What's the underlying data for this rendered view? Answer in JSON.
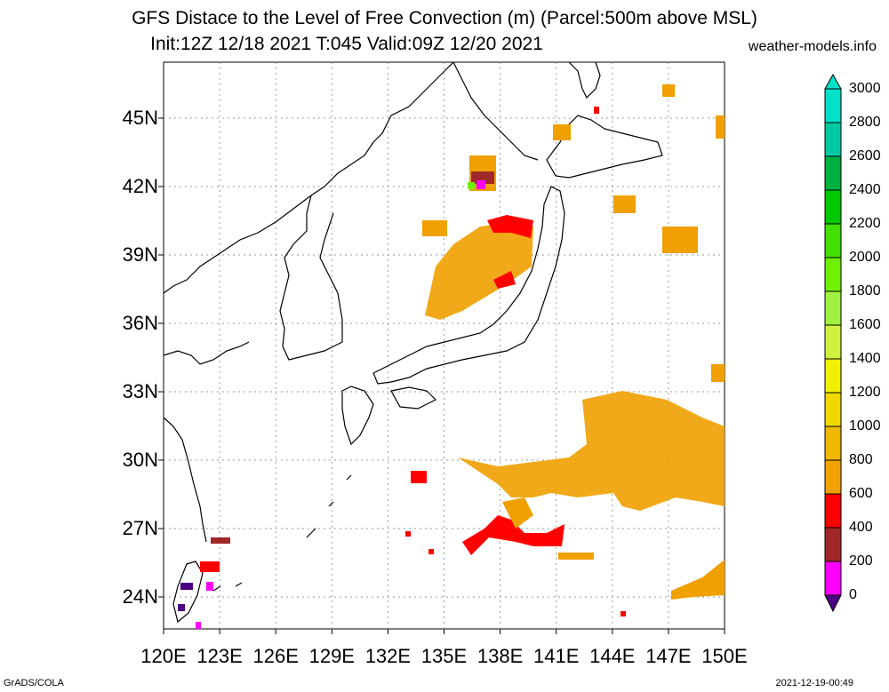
{
  "title_line1": "GFS Distace to the Level of Free Convection (m) (Parcel:500m above MSL)",
  "title_line2": "Init:12Z 12/18 2021 T:045 Valid:09Z 12/20 2021",
  "credit": "weather-models.info",
  "footer_left": "GrADS/COLA",
  "footer_right": "2021-12-19-00:49",
  "lat_labels": [
    "45N",
    "42N",
    "39N",
    "36N",
    "33N",
    "30N",
    "27N",
    "24N"
  ],
  "lon_labels": [
    "120E",
    "123E",
    "126E",
    "129E",
    "132E",
    "135E",
    "138E",
    "141E",
    "144E",
    "147E",
    "150E"
  ],
  "colorbar": {
    "labels": [
      "3000",
      "2800",
      "2600",
      "2400",
      "2200",
      "2000",
      "1800",
      "1600",
      "1400",
      "1200",
      "1000",
      "800",
      "600",
      "400",
      "200",
      "0"
    ],
    "colors": [
      "#00e0c8",
      "#00c8a0",
      "#00b040",
      "#00c800",
      "#40e000",
      "#70f000",
      "#a0f040",
      "#d0f040",
      "#f0f000",
      "#f0d800",
      "#f0b800",
      "#f0a000",
      "#ff0000",
      "#a02828",
      "#ff00ff",
      "#4b0082"
    ]
  }
}
